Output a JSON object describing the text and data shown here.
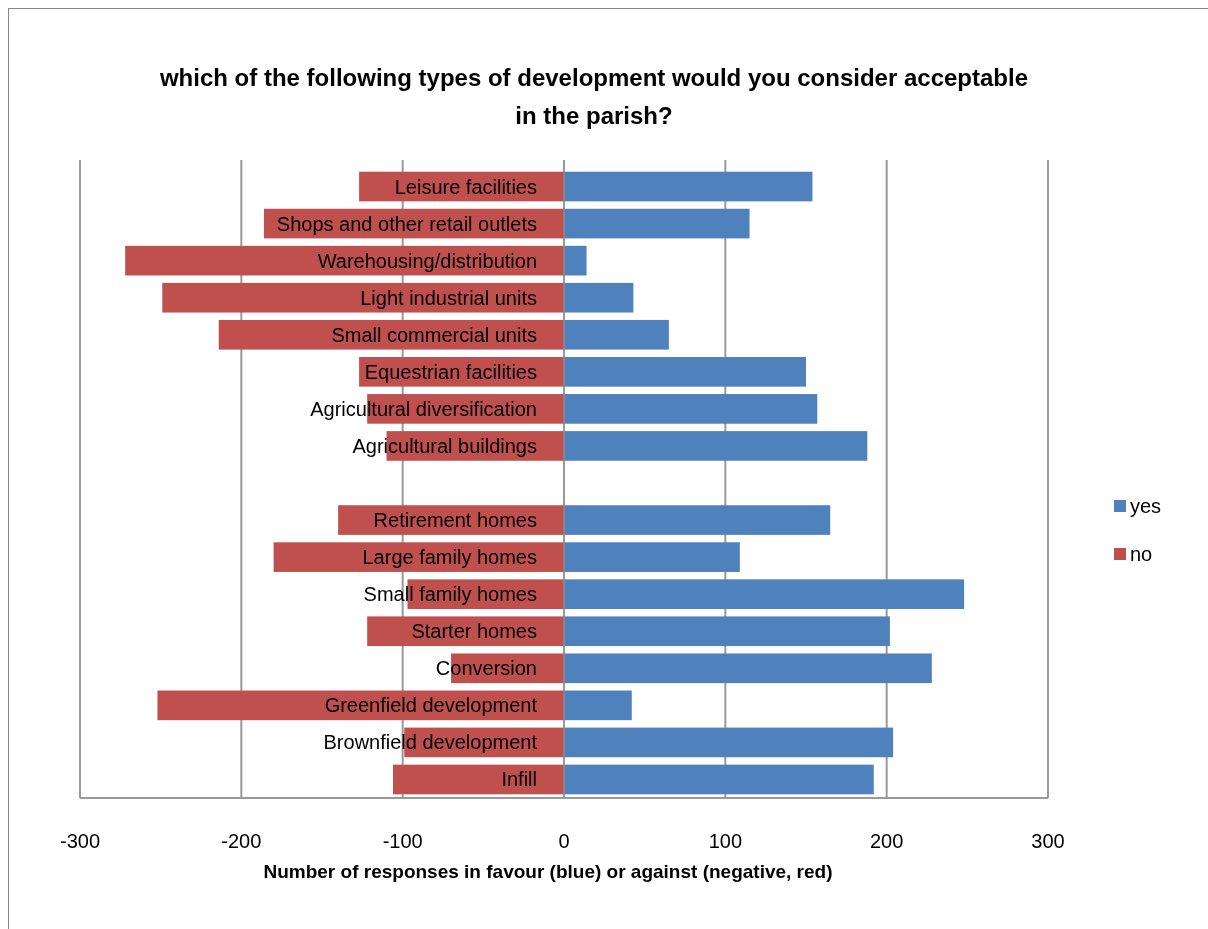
{
  "chart_data": {
    "type": "bar",
    "orientation": "horizontal",
    "stacked": true,
    "title": "which of the following types of development would you consider acceptable in the parish?",
    "xlabel": "Number of responses in favour (blue) or against (negative, red)",
    "categories": [
      "Leisure facilities",
      "Shops and other retail outlets",
      "Warehousing/distribution",
      "Light industrial units",
      "Small commercial units",
      "Equestrian facilities",
      "Agricultural diversification",
      "Agricultural buildings",
      null,
      "Retirement homes",
      "Large family homes",
      "Small family homes",
      "Starter homes",
      "Conversion",
      "Greenfield development",
      "Brownfield development",
      "Infill"
    ],
    "series": [
      {
        "name": "yes",
        "color": "#4f81bd",
        "values": [
          154,
          115,
          14,
          43,
          65,
          150,
          157,
          188,
          null,
          165,
          109,
          248,
          202,
          228,
          42,
          204,
          192
        ]
      },
      {
        "name": "no",
        "color": "#c0504d",
        "values": [
          -127,
          -186,
          -272,
          -249,
          -214,
          -127,
          -122,
          -110,
          0,
          -140,
          -180,
          -97,
          -122,
          -70,
          -252,
          -99,
          -106
        ]
      }
    ],
    "xlim": [
      -300,
      300
    ],
    "xticks": [
      -300,
      -200,
      -100,
      0,
      100,
      200,
      300
    ],
    "grid": "x",
    "legend": "right"
  }
}
